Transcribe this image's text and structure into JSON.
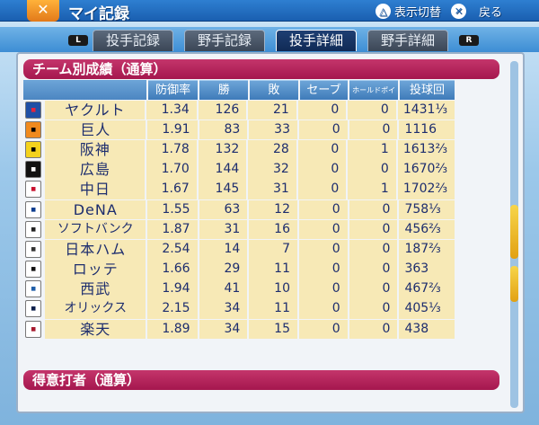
{
  "header": {
    "title": "マイ記録",
    "logo_icon": "tools-icon",
    "hint_triangle": "表示切替",
    "hint_cross": "戻る"
  },
  "tabs": {
    "left_shoulder": "L",
    "right_shoulder": "R",
    "items": [
      {
        "label": "投手記録",
        "active": false
      },
      {
        "label": "野手記録",
        "active": false
      },
      {
        "label": "投手詳細",
        "active": true
      },
      {
        "label": "野手詳細",
        "active": false
      }
    ]
  },
  "section1": {
    "title": "チーム別成績（通算）",
    "columns": [
      "防御率",
      "勝",
      "敗",
      "セーブ",
      "ホールドポイント",
      "投球回"
    ],
    "rows": [
      {
        "team": "ヤクルト",
        "era": "1.34",
        "w": "126",
        "l": "21",
        "sv": "0",
        "hp": "0",
        "ip": "1431⅓",
        "logo_bg": "#1f4fa5",
        "logo_fg": "#e6243c"
      },
      {
        "team": "巨人",
        "era": "1.91",
        "w": "83",
        "l": "33",
        "sv": "0",
        "hp": "0",
        "ip": "1116",
        "logo_bg": "#f08a1e",
        "logo_fg": "#000000"
      },
      {
        "team": "阪神",
        "era": "1.78",
        "w": "132",
        "l": "28",
        "sv": "0",
        "hp": "1",
        "ip": "1613⅔",
        "logo_bg": "#f4d21c",
        "logo_fg": "#000000"
      },
      {
        "team": "広島",
        "era": "1.70",
        "w": "144",
        "l": "32",
        "sv": "0",
        "hp": "0",
        "ip": "1670⅔",
        "logo_bg": "#111111",
        "logo_fg": "#ffffff"
      },
      {
        "team": "中日",
        "era": "1.67",
        "w": "145",
        "l": "31",
        "sv": "0",
        "hp": "1",
        "ip": "1702⅔",
        "logo_bg": "#ffffff",
        "logo_fg": "#c8102e"
      },
      {
        "team": "DeNA",
        "era": "1.55",
        "w": "63",
        "l": "12",
        "sv": "0",
        "hp": "0",
        "ip": "758⅓",
        "logo_bg": "#ffffff",
        "logo_fg": "#0c3d8f"
      },
      {
        "team": "ソフトバンク",
        "era": "1.87",
        "w": "31",
        "l": "16",
        "sv": "0",
        "hp": "0",
        "ip": "456⅔",
        "logo_bg": "#ffffff",
        "logo_fg": "#222222"
      },
      {
        "team": "日本ハム",
        "era": "2.54",
        "w": "14",
        "l": "7",
        "sv": "0",
        "hp": "0",
        "ip": "187⅔",
        "logo_bg": "#ffffff",
        "logo_fg": "#333333"
      },
      {
        "team": "ロッテ",
        "era": "1.66",
        "w": "29",
        "l": "11",
        "sv": "0",
        "hp": "0",
        "ip": "363",
        "logo_bg": "#ffffff",
        "logo_fg": "#111111"
      },
      {
        "team": "西武",
        "era": "1.94",
        "w": "41",
        "l": "10",
        "sv": "0",
        "hp": "0",
        "ip": "467⅔",
        "logo_bg": "#ffffff",
        "logo_fg": "#1f5ea8"
      },
      {
        "team": "オリックス",
        "era": "2.15",
        "w": "34",
        "l": "11",
        "sv": "0",
        "hp": "0",
        "ip": "405⅓",
        "logo_bg": "#ffffff",
        "logo_fg": "#0b1e4a"
      },
      {
        "team": "楽天",
        "era": "1.89",
        "w": "34",
        "l": "15",
        "sv": "0",
        "hp": "0",
        "ip": "438",
        "logo_bg": "#ffffff",
        "logo_fg": "#a6192e"
      }
    ]
  },
  "section2": {
    "title": "得意打者（通算）"
  }
}
